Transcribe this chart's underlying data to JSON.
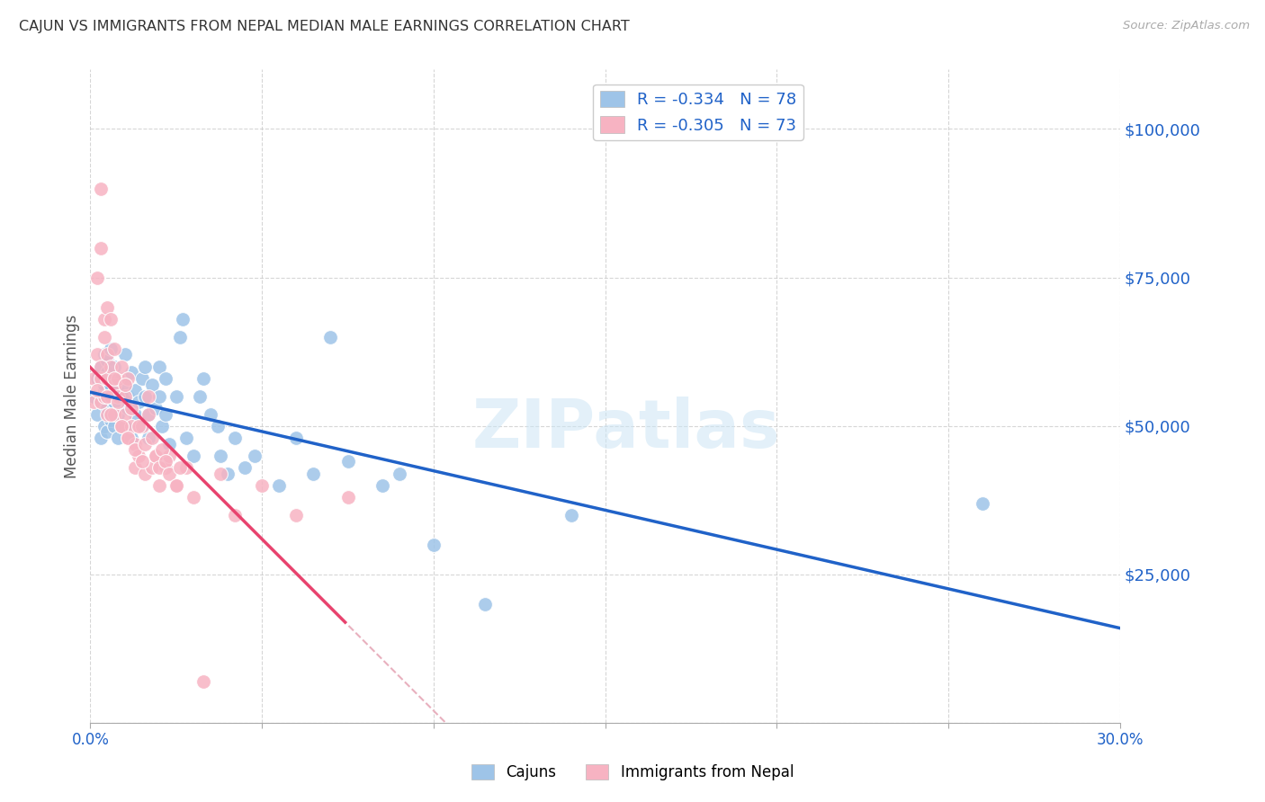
{
  "title": "CAJUN VS IMMIGRANTS FROM NEPAL MEDIAN MALE EARNINGS CORRELATION CHART",
  "source": "Source: ZipAtlas.com",
  "ylabel": "Median Male Earnings",
  "xlim": [
    0.0,
    0.3
  ],
  "ylim": [
    0,
    110000
  ],
  "yticks": [
    0,
    25000,
    50000,
    75000,
    100000
  ],
  "ytick_labels": [
    "",
    "$25,000",
    "$50,000",
    "$75,000",
    "$100,000"
  ],
  "xticks": [
    0.0,
    0.05,
    0.1,
    0.15,
    0.2,
    0.25,
    0.3
  ],
  "xtick_labels": [
    "0.0%",
    "",
    "",
    "",
    "",
    "",
    "30.0%"
  ],
  "cajun_color": "#9ec4e8",
  "cajun_line_color": "#2062c8",
  "nepal_color": "#f7b3c2",
  "nepal_line_color": "#e8436e",
  "nepal_dash_color": "#e8b0be",
  "legend_R1": "-0.334",
  "legend_N1": "78",
  "legend_R2": "-0.305",
  "legend_N2": "73",
  "watermark": "ZIPatlas",
  "cajun_label": "Cajuns",
  "nepal_label": "Immigrants from Nepal",
  "cajun_x": [
    0.001,
    0.002,
    0.002,
    0.003,
    0.003,
    0.003,
    0.004,
    0.004,
    0.004,
    0.004,
    0.005,
    0.005,
    0.005,
    0.005,
    0.005,
    0.006,
    0.006,
    0.006,
    0.006,
    0.006,
    0.007,
    0.007,
    0.007,
    0.007,
    0.008,
    0.008,
    0.008,
    0.009,
    0.009,
    0.01,
    0.01,
    0.01,
    0.011,
    0.011,
    0.012,
    0.012,
    0.013,
    0.013,
    0.014,
    0.015,
    0.015,
    0.016,
    0.016,
    0.017,
    0.017,
    0.018,
    0.019,
    0.02,
    0.02,
    0.021,
    0.022,
    0.022,
    0.023,
    0.025,
    0.026,
    0.027,
    0.028,
    0.03,
    0.032,
    0.033,
    0.035,
    0.037,
    0.038,
    0.04,
    0.042,
    0.045,
    0.048,
    0.055,
    0.06,
    0.065,
    0.07,
    0.075,
    0.085,
    0.09,
    0.1,
    0.115,
    0.14,
    0.26
  ],
  "cajun_y": [
    55000,
    52000,
    58000,
    54000,
    60000,
    48000,
    56000,
    62000,
    50000,
    57000,
    53000,
    61000,
    55000,
    49000,
    59000,
    57000,
    63000,
    51000,
    55000,
    52000,
    58000,
    50000,
    54000,
    60000,
    56000,
    48000,
    52000,
    55000,
    58000,
    62000,
    50000,
    57000,
    55000,
    53000,
    59000,
    48000,
    56000,
    52000,
    54000,
    58000,
    50000,
    60000,
    55000,
    52000,
    48000,
    57000,
    53000,
    55000,
    60000,
    50000,
    52000,
    58000,
    47000,
    55000,
    65000,
    68000,
    48000,
    45000,
    55000,
    58000,
    52000,
    50000,
    45000,
    42000,
    48000,
    43000,
    45000,
    40000,
    48000,
    42000,
    65000,
    44000,
    40000,
    42000,
    30000,
    20000,
    35000,
    37000
  ],
  "nepal_x": [
    0.001,
    0.001,
    0.002,
    0.002,
    0.003,
    0.003,
    0.003,
    0.003,
    0.004,
    0.004,
    0.004,
    0.005,
    0.005,
    0.005,
    0.005,
    0.006,
    0.006,
    0.006,
    0.007,
    0.007,
    0.007,
    0.008,
    0.008,
    0.009,
    0.009,
    0.01,
    0.01,
    0.011,
    0.011,
    0.012,
    0.013,
    0.013,
    0.014,
    0.015,
    0.016,
    0.017,
    0.018,
    0.019,
    0.02,
    0.022,
    0.023,
    0.025,
    0.028,
    0.03,
    0.033,
    0.038,
    0.042,
    0.05,
    0.06,
    0.075,
    0.002,
    0.003,
    0.005,
    0.006,
    0.007,
    0.008,
    0.009,
    0.01,
    0.011,
    0.012,
    0.013,
    0.014,
    0.015,
    0.016,
    0.017,
    0.018,
    0.019,
    0.02,
    0.021,
    0.022,
    0.023,
    0.025,
    0.026
  ],
  "nepal_y": [
    58000,
    54000,
    75000,
    62000,
    90000,
    80000,
    58000,
    54000,
    68000,
    65000,
    55000,
    70000,
    62000,
    58000,
    52000,
    60000,
    68000,
    55000,
    63000,
    57000,
    52000,
    58000,
    55000,
    60000,
    50000,
    55000,
    52000,
    48000,
    58000,
    50000,
    47000,
    43000,
    45000,
    50000,
    42000,
    55000,
    43000,
    45000,
    40000,
    43000,
    45000,
    40000,
    43000,
    38000,
    7000,
    42000,
    35000,
    40000,
    35000,
    38000,
    56000,
    60000,
    55000,
    52000,
    58000,
    54000,
    50000,
    57000,
    48000,
    53000,
    46000,
    50000,
    44000,
    47000,
    52000,
    48000,
    45000,
    43000,
    46000,
    44000,
    42000,
    40000,
    43000
  ]
}
